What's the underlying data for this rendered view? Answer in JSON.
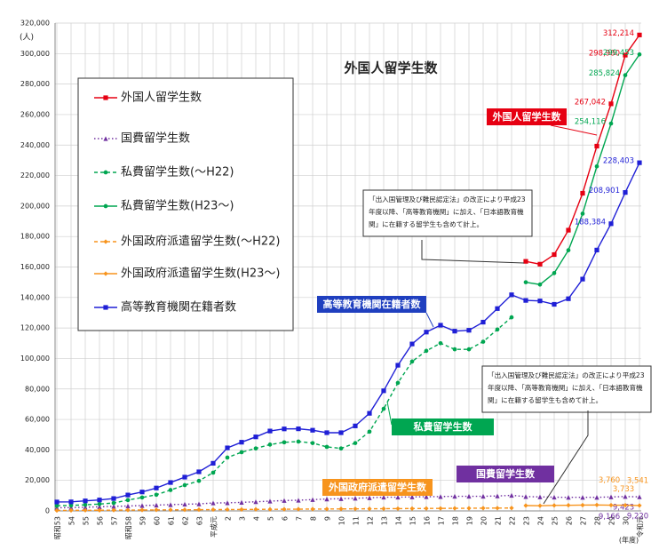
{
  "chart_data": {
    "type": "line",
    "title": "外国人留学生数",
    "y_unit": "(人)",
    "x_unit": "(年度)",
    "categories": [
      "昭和53",
      "54",
      "55",
      "56",
      "57",
      "昭和58",
      "59",
      "60",
      "61",
      "62",
      "63",
      "平成元",
      "2",
      "3",
      "4",
      "5",
      "6",
      "7",
      "8",
      "9",
      "10",
      "11",
      "12",
      "13",
      "14",
      "15",
      "16",
      "17",
      "18",
      "19",
      "20",
      "21",
      "22",
      "23",
      "24",
      "25",
      "26",
      "27",
      "28",
      "29",
      "30",
      "令和元"
    ],
    "ylim": [
      0,
      320000
    ],
    "yticks": [
      0,
      {
        "value": 20000,
        "label": "20,000"
      },
      {
        "value": 40000,
        "label": "40,000"
      },
      {
        "value": 60000,
        "label": "60,000"
      },
      {
        "value": 80000,
        "label": "80,000"
      },
      {
        "value": 100000,
        "label": "100,000"
      },
      {
        "value": 120000,
        "label": "120,000"
      },
      {
        "value": 140000,
        "label": "140,000"
      },
      {
        "value": 160000,
        "label": "160,000"
      },
      {
        "value": 180000,
        "label": "180,000"
      },
      {
        "value": 200000,
        "label": "200,000"
      },
      {
        "value": 220000,
        "label": "220,000"
      },
      {
        "value": 240000,
        "label": "240,000"
      },
      {
        "value": 260000,
        "label": "260,000"
      },
      {
        "value": 280000,
        "label": "280,000"
      },
      {
        "value": 300000,
        "label": "300,000"
      },
      {
        "value": 320000,
        "label": "320,000"
      }
    ],
    "grid": true,
    "series": [
      {
        "name": "外国人留学生数",
        "color": "#e60012",
        "dash": "solid",
        "marker": "square",
        "values": [
          null,
          null,
          null,
          null,
          null,
          null,
          null,
          null,
          null,
          null,
          null,
          null,
          null,
          null,
          null,
          null,
          null,
          null,
          null,
          null,
          null,
          null,
          null,
          null,
          null,
          null,
          null,
          null,
          null,
          null,
          null,
          null,
          null,
          163697,
          161848,
          168145,
          184155,
          208379,
          239287,
          267042,
          298980,
          312214
        ],
        "value_labels": [
          null,
          null,
          null,
          null,
          null,
          null,
          null,
          null,
          null,
          null,
          null,
          null,
          null,
          null,
          null,
          null,
          null,
          null,
          null,
          null,
          null,
          null,
          null,
          null,
          null,
          null,
          null,
          null,
          null,
          null,
          null,
          null,
          null,
          null,
          null,
          null,
          null,
          null,
          null,
          "267,042",
          "298,980",
          "312,214"
        ]
      },
      {
        "name": "国費留学生数",
        "color": "#7030a0",
        "dash": "dot",
        "marker": "triangle",
        "values": [
          2000,
          2200,
          2400,
          2700,
          3000,
          3200,
          3500,
          3800,
          4100,
          4400,
          4600,
          5200,
          5300,
          5600,
          6000,
          6400,
          6800,
          7000,
          7400,
          7800,
          8000,
          8300,
          8600,
          9000,
          9000,
          9200,
          9300,
          9400,
          9600,
          9600,
          9600,
          9800,
          10200,
          9400,
          9200,
          9000,
          8900,
          8900,
          8900,
          9166,
          9423,
          9220
        ],
        "value_labels": [
          null,
          null,
          null,
          null,
          null,
          null,
          null,
          null,
          null,
          null,
          null,
          null,
          null,
          null,
          null,
          null,
          null,
          null,
          null,
          null,
          null,
          null,
          null,
          null,
          null,
          null,
          null,
          null,
          null,
          null,
          null,
          null,
          null,
          null,
          null,
          null,
          null,
          null,
          null,
          "9,166",
          "9,423",
          "9,220"
        ]
      },
      {
        "name": "私費留学生数(～H22)",
        "color": "#00a651",
        "dash": "dash",
        "marker": "circle",
        "values": [
          3400,
          3600,
          4000,
          4500,
          5200,
          7100,
          8800,
          10600,
          13700,
          16900,
          19700,
          25100,
          35000,
          38500,
          41000,
          43500,
          45000,
          45500,
          44500,
          42000,
          41000,
          44500,
          52000,
          67000,
          84000,
          98000,
          105000,
          110000,
          106000,
          106000,
          111000,
          119000,
          127000,
          null,
          null,
          null,
          null,
          null,
          null,
          null,
          null,
          null
        ]
      },
      {
        "name": "私費留学生数(H23～)",
        "color": "#00a651",
        "dash": "solid",
        "marker": "circle",
        "values": [
          null,
          null,
          null,
          null,
          null,
          null,
          null,
          null,
          null,
          null,
          null,
          null,
          null,
          null,
          null,
          null,
          null,
          null,
          null,
          null,
          null,
          null,
          null,
          null,
          null,
          null,
          null,
          null,
          null,
          null,
          null,
          null,
          null,
          150000,
          148500,
          156000,
          171000,
          195000,
          226000,
          254116,
          285824,
          299453
        ],
        "value_labels": [
          null,
          null,
          null,
          null,
          null,
          null,
          null,
          null,
          null,
          null,
          null,
          null,
          null,
          null,
          null,
          null,
          null,
          null,
          null,
          null,
          null,
          null,
          null,
          null,
          null,
          null,
          null,
          null,
          null,
          null,
          null,
          null,
          null,
          null,
          null,
          null,
          null,
          null,
          null,
          "254,116",
          "285,824",
          "299,453"
        ]
      },
      {
        "name": "外国政府派遣留学生数(～H22)",
        "color": "#f7941d",
        "dash": "dash",
        "marker": "diamond",
        "values": [
          300,
          350,
          400,
          450,
          500,
          550,
          600,
          650,
          700,
          750,
          800,
          850,
          900,
          950,
          1000,
          1050,
          1100,
          1150,
          1200,
          1250,
          1300,
          1350,
          1400,
          1450,
          1500,
          1550,
          1600,
          1650,
          1700,
          1750,
          1800,
          1850,
          1900,
          null,
          null,
          null,
          null,
          null,
          null,
          null,
          null,
          null
        ]
      },
      {
        "name": "外国政府派遣留学生数(H23～)",
        "color": "#f7941d",
        "dash": "solid",
        "marker": "diamond",
        "values": [
          null,
          null,
          null,
          null,
          null,
          null,
          null,
          null,
          null,
          null,
          null,
          null,
          null,
          null,
          null,
          null,
          null,
          null,
          null,
          null,
          null,
          null,
          null,
          null,
          null,
          null,
          null,
          null,
          null,
          null,
          null,
          null,
          null,
          3500,
          3400,
          3600,
          3700,
          3800,
          3900,
          3760,
          3733,
          3541
        ],
        "value_labels": [
          null,
          null,
          null,
          null,
          null,
          null,
          null,
          null,
          null,
          null,
          null,
          null,
          null,
          null,
          null,
          null,
          null,
          null,
          null,
          null,
          null,
          null,
          null,
          null,
          null,
          null,
          null,
          null,
          null,
          null,
          null,
          null,
          null,
          null,
          null,
          null,
          null,
          null,
          null,
          "3,760",
          "3,733",
          "3,541"
        ]
      },
      {
        "name": "高等教育機関在籍者数",
        "color": "#1f1fd6",
        "dash": "solid",
        "marker": "square",
        "values": [
          5849,
          5933,
          6572,
          7179,
          8116,
          10428,
          12410,
          15009,
          18631,
          22154,
          25643,
          31251,
          41347,
          45066,
          48561,
          52405,
          53787,
          53847,
          52921,
          51298,
          51298,
          55755,
          64011,
          78812,
          95550,
          109508,
          117302,
          121812,
          117927,
          118498,
          123829,
          132720,
          141774,
          138075,
          137756,
          135519,
          139185,
          152062,
          171122,
          188384,
          208901,
          228403
        ],
        "value_labels": [
          null,
          null,
          null,
          null,
          null,
          null,
          null,
          null,
          null,
          null,
          null,
          null,
          null,
          null,
          null,
          null,
          null,
          null,
          null,
          null,
          null,
          null,
          null,
          null,
          null,
          null,
          null,
          null,
          null,
          null,
          null,
          null,
          null,
          null,
          null,
          null,
          null,
          null,
          null,
          "188,384",
          "208,901",
          "228,403"
        ]
      }
    ],
    "series_labels": [
      "外国人留学生数",
      "高等教育機関在籍者数",
      "私費留学生数",
      "国費留学生数",
      "外国政府派遣留学生数"
    ],
    "notes": [
      {
        "lines": [
          "「出入国管理及び難民認定法」の改正により平成23",
          "年度以降、「高等教育機関」に加え、「日本語教育機",
          "関」に在籍する留学生も含めて計上。"
        ]
      },
      {
        "lines": [
          "「出入国管理及び難民認定法」の改正により平成23",
          "年度以降、「高等教育機関」に加え、「日本語教育機",
          "関」に在籍する留学生も含めて計上。"
        ]
      }
    ]
  }
}
